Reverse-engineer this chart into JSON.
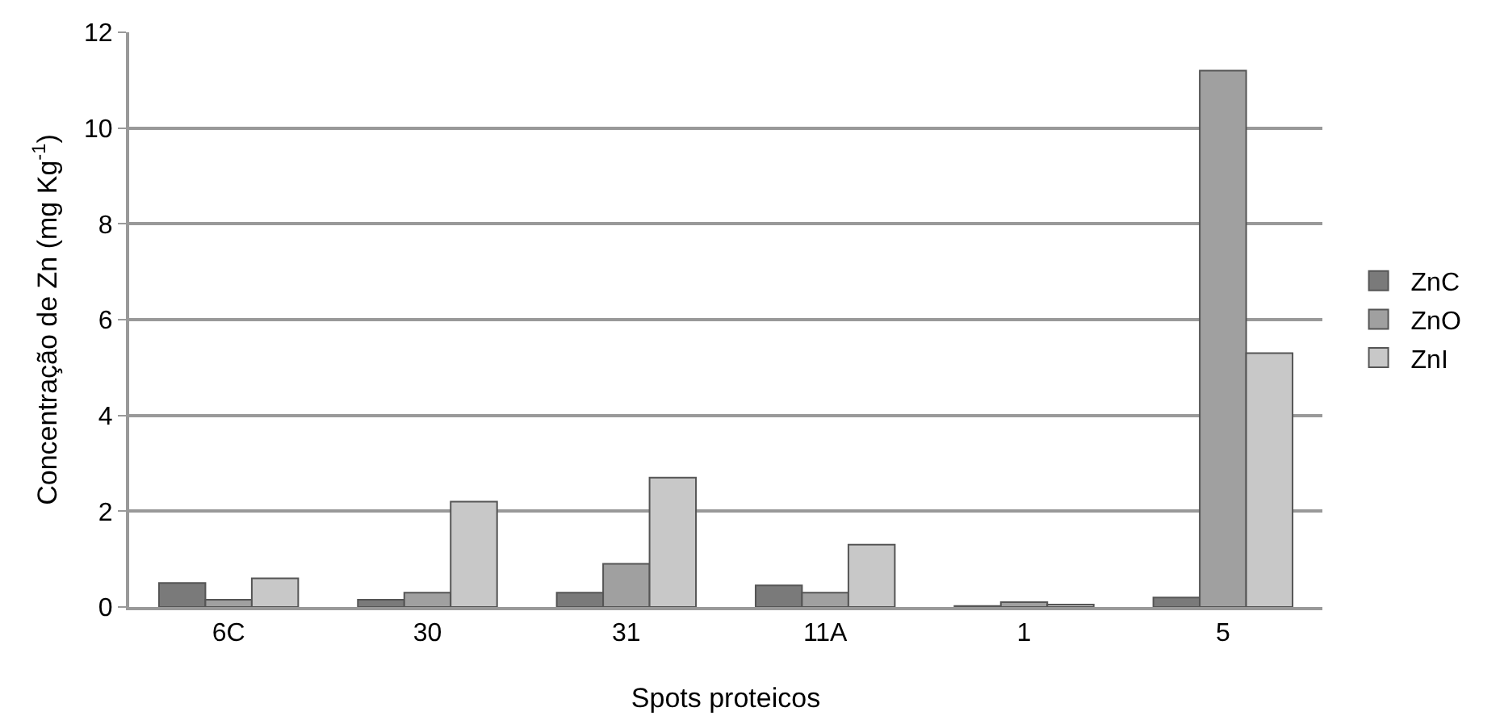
{
  "chart_data": {
    "type": "bar",
    "xlabel": "Spots proteicos",
    "ylabel": "Concentração de Zn (mg Kg$^{-1}$)",
    "categories": [
      "6C",
      "30",
      "31",
      "11A",
      "1",
      "5"
    ],
    "series": [
      {
        "name": "ZnC",
        "color": "#7a7a7a",
        "values": [
          0.5,
          0.15,
          0.3,
          0.45,
          0.02,
          0.2
        ]
      },
      {
        "name": "ZnO",
        "color": "#a0a0a0",
        "values": [
          0.15,
          0.3,
          0.9,
          0.3,
          0.1,
          11.2
        ]
      },
      {
        "name": "ZnI",
        "color": "#c8c8c8",
        "values": [
          0.6,
          2.2,
          2.7,
          1.3,
          0.05,
          5.3
        ]
      }
    ],
    "ylim": [
      0,
      12
    ],
    "yticks": [
      0,
      2,
      4,
      6,
      8,
      10,
      12
    ],
    "grid": "y",
    "legend": "right"
  }
}
